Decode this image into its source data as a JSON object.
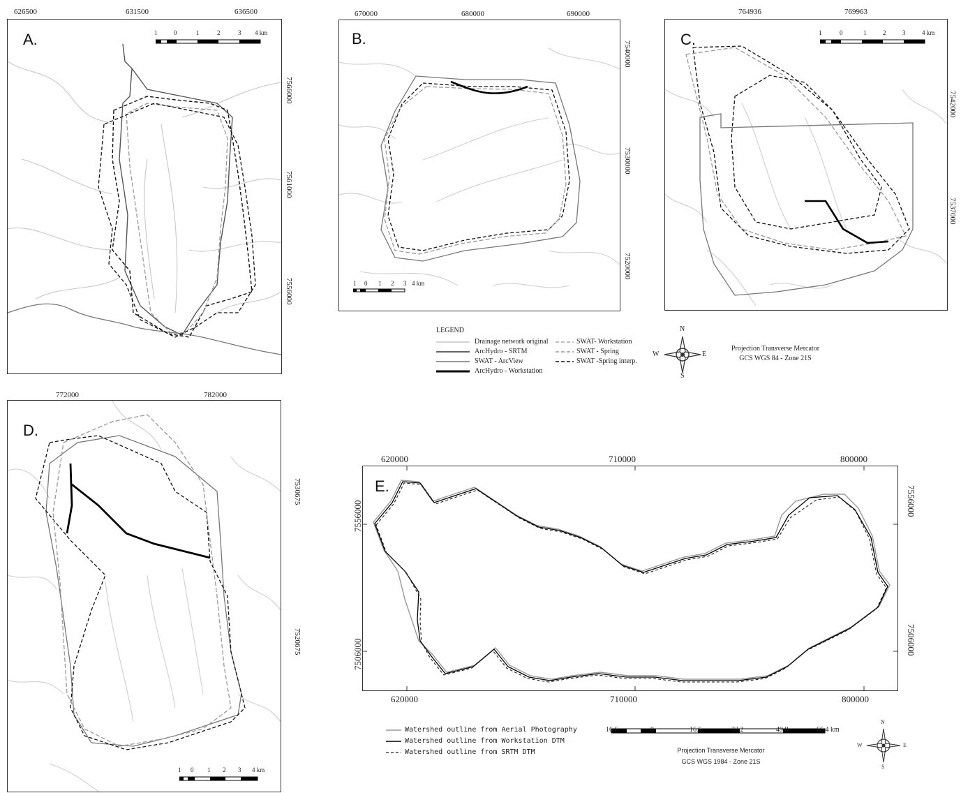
{
  "panels": {
    "A": {
      "label": "A.",
      "x_ticks": [
        "626500",
        "631500",
        "636500"
      ],
      "y_ticks": [
        "7566000",
        "7561000",
        "7556000"
      ],
      "scale_labels": [
        "1",
        "0",
        "1",
        "2",
        "3",
        "4 km"
      ]
    },
    "B": {
      "label": "B.",
      "x_ticks": [
        "670000",
        "680000",
        "690000"
      ],
      "y_ticks": [
        "7540000",
        "7530000",
        "7520000"
      ],
      "scale_labels": [
        "1",
        "0",
        "1",
        "2",
        "3",
        "4 km"
      ]
    },
    "C": {
      "label": "C.",
      "x_ticks": [
        "764936",
        "769963"
      ],
      "y_ticks": [
        "7542000",
        "7537000"
      ],
      "scale_labels": [
        "1",
        "0",
        "1",
        "2",
        "3",
        "4 km"
      ]
    },
    "D": {
      "label": "D.",
      "x_ticks": [
        "772000",
        "782000"
      ],
      "y_ticks": [
        "7530675",
        "7520675"
      ],
      "scale_labels": [
        "1",
        "0",
        "1",
        "2",
        "3",
        "4 km"
      ]
    },
    "E": {
      "label": "E.",
      "x_ticks": [
        "620000",
        "710000",
        "800000"
      ],
      "y_ticks": [
        "7556000",
        "7506000"
      ],
      "scale_labels": [
        "16.6",
        "0",
        "16.6",
        "33.2",
        "49.8",
        "66.4 km"
      ],
      "legend": [
        "Watershed outline from Aerial Photography",
        "Watershed outline from Workstation DTM",
        "Watershed outline from SRTM DTM"
      ],
      "projection": [
        "Projection Transverse Mercator",
        "GCS WGS 1984 - Zone 21S"
      ],
      "compass": {
        "n": "N",
        "s": "S",
        "e": "E",
        "w": "W"
      }
    }
  },
  "legend": {
    "title": "LEGEND",
    "items_left": [
      "Drainage network original",
      "ArcHydro - SRTM",
      "SWAT - ArcView",
      "ArcHydro - Workstation"
    ],
    "items_right": [
      "SWAT- Workstation",
      "SWAT - Spring",
      "SWAT -Spring interp."
    ]
  },
  "projection": [
    "Projection Transverse Mercator",
    "GCS WGS 84 - Zone 21S"
  ],
  "compass": {
    "n": "N",
    "s": "S",
    "e": "E",
    "w": "W"
  },
  "colors": {
    "drainage": "#bbbbbb",
    "archydro_srtm": "#333333",
    "swat_arcview": "#777777",
    "archydro_workstation": "#000000",
    "swat_workstation": "#aaaaaa",
    "swat_spring": "#999999",
    "swat_spring_interp": "#111111"
  }
}
